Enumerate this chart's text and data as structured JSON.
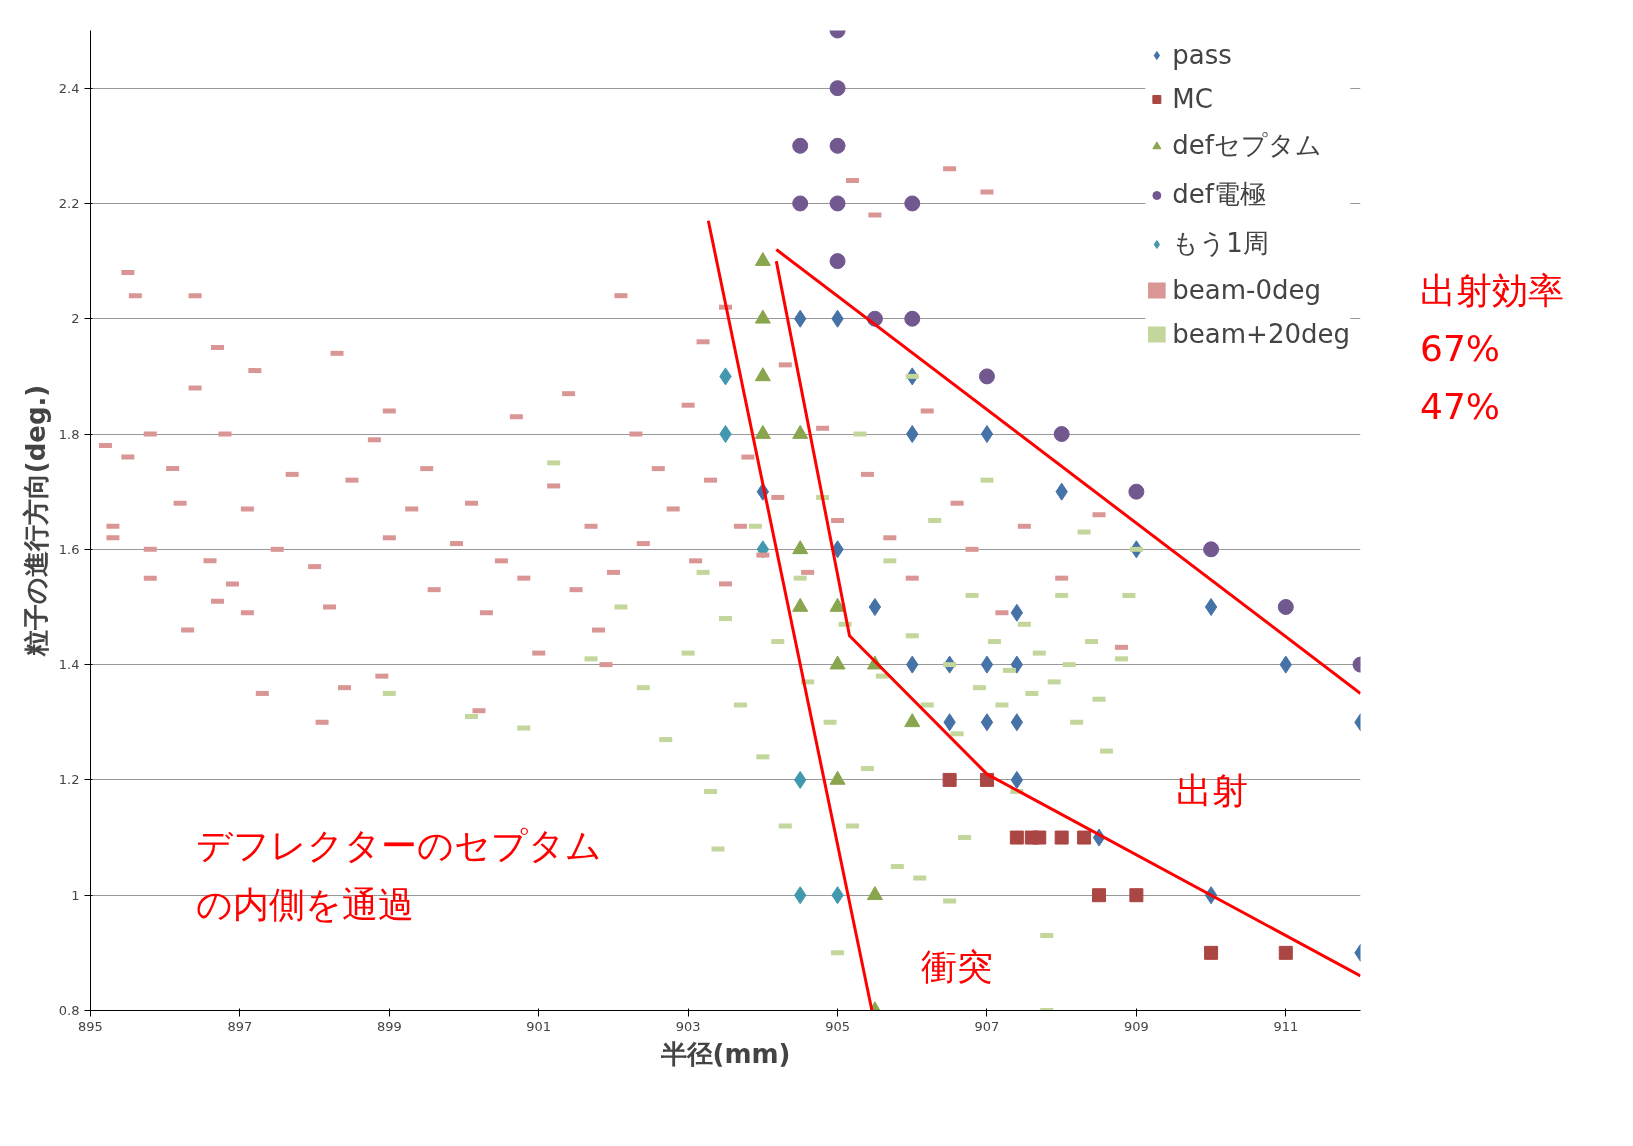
{
  "chart_data": {
    "type": "scatter",
    "xlabel": "半径(mm)",
    "ylabel": "粒子の進行方向(deg.)",
    "xlim": [
      895,
      912
    ],
    "xticks": [
      895,
      897,
      899,
      901,
      903,
      905,
      907,
      909,
      911
    ],
    "ylim": [
      0.8,
      2.5
    ],
    "yticks": [
      0.8,
      1,
      1.2,
      1.4,
      1.6,
      1.8,
      2,
      2.2,
      2.4
    ],
    "grid": "y",
    "legend": "top right",
    "annotations": [
      "出射効率",
      "67%",
      "47%",
      "出射",
      "衝突",
      "デフレクターのセプタム",
      "の内側を通過"
    ],
    "series": [
      {
        "name": "pass",
        "color": "#4572a7",
        "marker": "diamond",
        "x": [
          904.5,
          905,
          906,
          906,
          907,
          908,
          909,
          910,
          911,
          912,
          912,
          910,
          908.5,
          907.4,
          907.4,
          907.4,
          907.4,
          907,
          907,
          906.5,
          906.5,
          905.5,
          905,
          904,
          906
        ],
        "values": [
          2.0,
          2.0,
          1.9,
          1.8,
          1.8,
          1.7,
          1.6,
          1.5,
          1.4,
          1.3,
          0.9,
          1.0,
          1.1,
          1.2,
          1.3,
          1.4,
          1.49,
          1.4,
          1.3,
          1.4,
          1.3,
          1.5,
          1.6,
          1.7,
          1.4
        ]
      },
      {
        "name": "MC",
        "color": "#aa4643",
        "marker": "square",
        "x": [
          906.5,
          907,
          907.4,
          907.6,
          907.7,
          908,
          908.3,
          908.5,
          909,
          910,
          911
        ],
        "values": [
          1.2,
          1.2,
          1.1,
          1.1,
          1.1,
          1.1,
          1.1,
          1.0,
          1.0,
          0.9,
          0.9
        ]
      },
      {
        "name": "defセプタム",
        "color": "#89a54e",
        "marker": "triangle",
        "x": [
          904,
          904,
          904,
          904,
          904.5,
          904.5,
          904.5,
          905,
          905,
          905.5,
          906,
          905,
          905.5,
          905.5
        ],
        "values": [
          2.1,
          2.0,
          1.9,
          1.8,
          1.8,
          1.6,
          1.5,
          1.5,
          1.4,
          1.4,
          1.3,
          1.2,
          1.0,
          0.8
        ]
      },
      {
        "name": "def電極",
        "color": "#71588f",
        "marker": "circle",
        "x": [
          905,
          905,
          904.5,
          905,
          904.5,
          905,
          906,
          905,
          905.5,
          906,
          907,
          908,
          909,
          910,
          911,
          912
        ],
        "values": [
          2.5,
          2.4,
          2.3,
          2.3,
          2.2,
          2.2,
          2.2,
          2.1,
          2.0,
          2.0,
          1.9,
          1.8,
          1.7,
          1.6,
          1.5,
          1.4
        ]
      },
      {
        "name": "もう1周",
        "color": "#4198af",
        "marker": "diamond",
        "x": [
          903.5,
          903.5,
          904,
          904.5,
          904.5,
          905
        ],
        "values": [
          1.9,
          1.8,
          1.6,
          1.2,
          1.0,
          1.0
        ]
      },
      {
        "name": "beam-0deg",
        "color": "#d99694",
        "x": [
          895.2,
          895.5,
          895.5,
          895.6,
          895.8,
          895.3,
          895.3,
          895.8,
          895.8,
          896.1,
          896.2,
          896.3,
          896.4,
          896.4,
          896.6,
          896.7,
          896.7,
          896.8,
          896.9,
          897.1,
          897.1,
          897.2,
          897.5,
          897.7,
          898.0,
          898.2,
          898.3,
          898.4,
          898.5,
          898.8,
          898.9,
          899.0,
          899.0,
          899.3,
          899.5,
          899.6,
          899.9,
          900.1,
          900.3,
          900.5,
          900.7,
          900.8,
          901.0,
          901.2,
          901.4,
          901.5,
          901.7,
          901.8,
          902.0,
          902.1,
          902.3,
          902.4,
          902.6,
          902.8,
          903.0,
          903.1,
          903.2,
          903.3,
          903.5,
          903.5,
          903.7,
          903.8,
          904.0,
          904.2,
          904.3,
          904.6,
          904.8,
          905.0,
          905.2,
          905.4,
          905.5,
          905.7,
          906.0,
          906.2,
          906.5,
          906.6,
          906.8,
          907.0,
          907.2,
          907.5,
          908.0,
          908.5,
          908.8,
          897.3,
          898.1,
          900.2,
          901.9
        ],
        "values": [
          1.78,
          1.76,
          2.08,
          2.04,
          1.8,
          1.64,
          1.62,
          1.6,
          1.55,
          1.74,
          1.68,
          1.46,
          2.04,
          1.88,
          1.58,
          1.95,
          1.51,
          1.8,
          1.54,
          1.67,
          1.49,
          1.91,
          1.6,
          1.73,
          1.57,
          1.5,
          1.94,
          1.36,
          1.72,
          1.79,
          1.38,
          1.84,
          1.62,
          1.67,
          1.74,
          1.53,
          1.61,
          1.68,
          1.49,
          1.58,
          1.83,
          1.55,
          1.42,
          1.71,
          1.87,
          1.53,
          1.64,
          1.46,
          1.56,
          2.04,
          1.8,
          1.61,
          1.74,
          1.67,
          1.85,
          1.58,
          1.96,
          1.72,
          1.54,
          2.02,
          1.64,
          1.76,
          1.59,
          1.69,
          1.92,
          1.56,
          1.81,
          1.65,
          2.24,
          1.73,
          2.18,
          1.62,
          1.55,
          1.84,
          2.26,
          1.68,
          1.6,
          2.22,
          1.49,
          1.64,
          1.55,
          1.66,
          1.43,
          1.35,
          1.3,
          1.32,
          1.4
        ]
      },
      {
        "name": "beam+20deg",
        "color": "#c3d69b",
        "x": [
          899.0,
          900.1,
          900.8,
          901.2,
          901.7,
          902.1,
          902.4,
          902.7,
          903.0,
          903.2,
          903.3,
          903.4,
          903.5,
          903.7,
          903.9,
          904.0,
          904.2,
          904.3,
          904.5,
          904.6,
          904.8,
          904.9,
          905.0,
          905.1,
          905.3,
          905.4,
          905.6,
          905.7,
          905.8,
          906.0,
          906.0,
          906.2,
          906.3,
          906.5,
          906.5,
          906.6,
          906.8,
          906.9,
          907.0,
          907.1,
          907.2,
          907.3,
          907.4,
          907.5,
          907.6,
          907.7,
          907.8,
          907.8,
          907.9,
          908.0,
          908.1,
          908.2,
          908.3,
          908.4,
          908.5,
          908.6,
          908.8,
          908.9,
          909.0,
          905.2,
          906.7,
          906.1
        ],
        "values": [
          1.35,
          1.31,
          1.29,
          1.75,
          1.41,
          1.5,
          1.36,
          1.27,
          1.42,
          1.56,
          1.18,
          1.08,
          1.48,
          1.33,
          1.64,
          1.24,
          1.44,
          1.12,
          1.55,
          1.37,
          1.69,
          1.3,
          0.9,
          1.47,
          1.8,
          1.22,
          1.38,
          1.58,
          1.05,
          1.9,
          1.45,
          1.33,
          1.65,
          0.99,
          1.4,
          1.28,
          1.52,
          1.36,
          1.72,
          1.44,
          1.33,
          1.39,
          1.18,
          1.47,
          1.35,
          1.42,
          0.93,
          0.8,
          1.37,
          1.52,
          1.4,
          1.3,
          1.63,
          1.44,
          1.34,
          1.25,
          1.41,
          1.52,
          1.6,
          1.12,
          1.1,
          1.03
        ]
      },
      {
        "type": "line",
        "color": "#ff0000",
        "marker": "none",
        "x": [
          903.27,
          905.46
        ],
        "values": [
          2.17,
          0.8
        ]
      },
      {
        "type": "line",
        "color": "#ff0000",
        "marker": "none",
        "x": [
          904.18,
          905.16,
          907.0,
          912
        ],
        "values": [
          2.1,
          1.45,
          1.21,
          0.86
        ]
      },
      {
        "type": "line",
        "color": "#ff0000",
        "marker": "none",
        "x": [
          904.18,
          912
        ],
        "values": [
          2.12,
          1.35
        ]
      }
    ]
  }
}
